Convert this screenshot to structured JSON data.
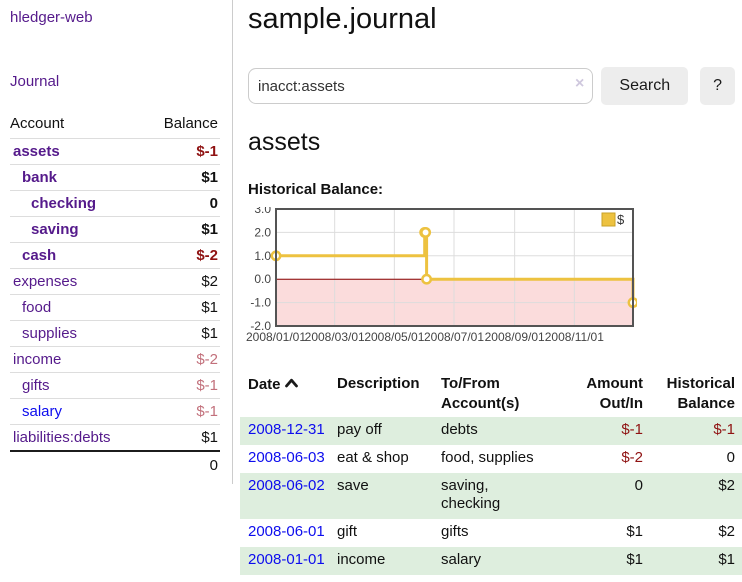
{
  "app": {
    "title": "hledger-web",
    "nav_journal": "Journal"
  },
  "sidebar": {
    "columns": {
      "account": "Account",
      "balance": "Balance"
    },
    "accounts": [
      {
        "name": "assets",
        "indent": 1,
        "bold": true,
        "balance": "$-1",
        "balance_style": "neg-strong",
        "link_style": "purple"
      },
      {
        "name": "bank",
        "indent": 2,
        "bold": true,
        "balance": "$1",
        "balance_style": "pos",
        "link_style": "purple"
      },
      {
        "name": "checking",
        "indent": 3,
        "bold": true,
        "balance": "0",
        "balance_style": "pos",
        "link_style": "purple"
      },
      {
        "name": "saving",
        "indent": 3,
        "bold": true,
        "balance": "$1",
        "balance_style": "pos",
        "link_style": "purple"
      },
      {
        "name": "cash",
        "indent": 2,
        "bold": true,
        "balance": "$-2",
        "balance_style": "neg-strong",
        "link_style": "purple"
      },
      {
        "name": "expenses",
        "indent": 1,
        "bold": false,
        "balance": "$2",
        "balance_style": "pos",
        "link_style": "purple"
      },
      {
        "name": "food",
        "indent": 2,
        "bold": false,
        "balance": "$1",
        "balance_style": "pos",
        "link_style": "purple"
      },
      {
        "name": "supplies",
        "indent": 2,
        "bold": false,
        "balance": "$1",
        "balance_style": "pos",
        "link_style": "purple"
      },
      {
        "name": "income",
        "indent": 1,
        "bold": false,
        "balance": "$-2",
        "balance_style": "neg-muted",
        "link_style": "purple"
      },
      {
        "name": "gifts",
        "indent": 2,
        "bold": false,
        "balance": "$-1",
        "balance_style": "neg-muted",
        "link_style": "purple"
      },
      {
        "name": "salary",
        "indent": 2,
        "bold": false,
        "balance": "$-1",
        "balance_style": "neg-muted",
        "link_style": "blue"
      },
      {
        "name": "liabilities:debts",
        "indent": 1,
        "bold": false,
        "balance": "$1",
        "balance_style": "pos",
        "link_style": "purple"
      }
    ],
    "total": "0"
  },
  "header": {
    "title": "sample.journal"
  },
  "search": {
    "value": "inacct:assets",
    "clear_icon": "×",
    "button_label": "Search",
    "help_label": "?"
  },
  "account_page": {
    "title": "assets",
    "chart_label": "Historical Balance:"
  },
  "chart_data": {
    "type": "line",
    "title": "Historical Balance",
    "style": "steps",
    "series": [
      {
        "name": "$",
        "color": "#EDC240",
        "points": [
          [
            "2008-01-01",
            1
          ],
          [
            "2008-06-01",
            2
          ],
          [
            "2008-06-02",
            2
          ],
          [
            "2008-06-03",
            0
          ],
          [
            "2008-12-31",
            -1
          ]
        ]
      }
    ],
    "x_ticks": [
      "2008/01/01",
      "2008/03/01",
      "2008/05/01",
      "2008/07/01",
      "2008/09/01",
      "2008/11/01"
    ],
    "y_ticks": [
      "3.0",
      "2.0",
      "1.0",
      "0.0",
      "-1.0",
      "-2.0"
    ],
    "xlim": [
      "2008-01-01",
      "2008-12-31"
    ],
    "ylim": [
      -2,
      3
    ],
    "grid": true,
    "negative_region_fill": "#fbdcdc",
    "zero_line_color": "#8b0000",
    "legend": {
      "label": "$",
      "position": "top-right"
    }
  },
  "register": {
    "headers": {
      "date": "Date",
      "description": "Description",
      "accounts_line1": "To/From",
      "accounts_line2": "Account(s)",
      "amount_line1": "Amount",
      "amount_line2": "Out/In",
      "balance_line1": "Historical",
      "balance_line2": "Balance"
    },
    "rows": [
      {
        "date": "2008-12-31",
        "description": "pay off",
        "accounts": "debts",
        "amount": "$-1",
        "amount_neg": true,
        "balance": "$-1",
        "balance_neg": true
      },
      {
        "date": "2008-06-03",
        "description": "eat & shop",
        "accounts": "food, supplies",
        "amount": "$-2",
        "amount_neg": true,
        "balance": "0",
        "balance_neg": false
      },
      {
        "date": "2008-06-02",
        "description": "save",
        "accounts": "saving, checking",
        "amount": "0",
        "amount_neg": false,
        "balance": "$2",
        "balance_neg": false
      },
      {
        "date": "2008-06-01",
        "description": "gift",
        "accounts": "gifts",
        "amount": "$1",
        "amount_neg": false,
        "balance": "$2",
        "balance_neg": false
      },
      {
        "date": "2008-01-01",
        "description": "income",
        "accounts": "salary",
        "amount": "$1",
        "amount_neg": false,
        "balance": "$1",
        "balance_neg": false
      }
    ]
  },
  "colors": {
    "link_purple": "#551a8b",
    "link_blue": "#0d0dee",
    "negative_strong": "#8f1212",
    "negative_muted": "#c2707b",
    "row_stripe_green": "#deeede",
    "series_yellow": "#EDC240",
    "button_bg": "#ededed",
    "plot_border": "#545454",
    "gridline": "#dddddd"
  }
}
